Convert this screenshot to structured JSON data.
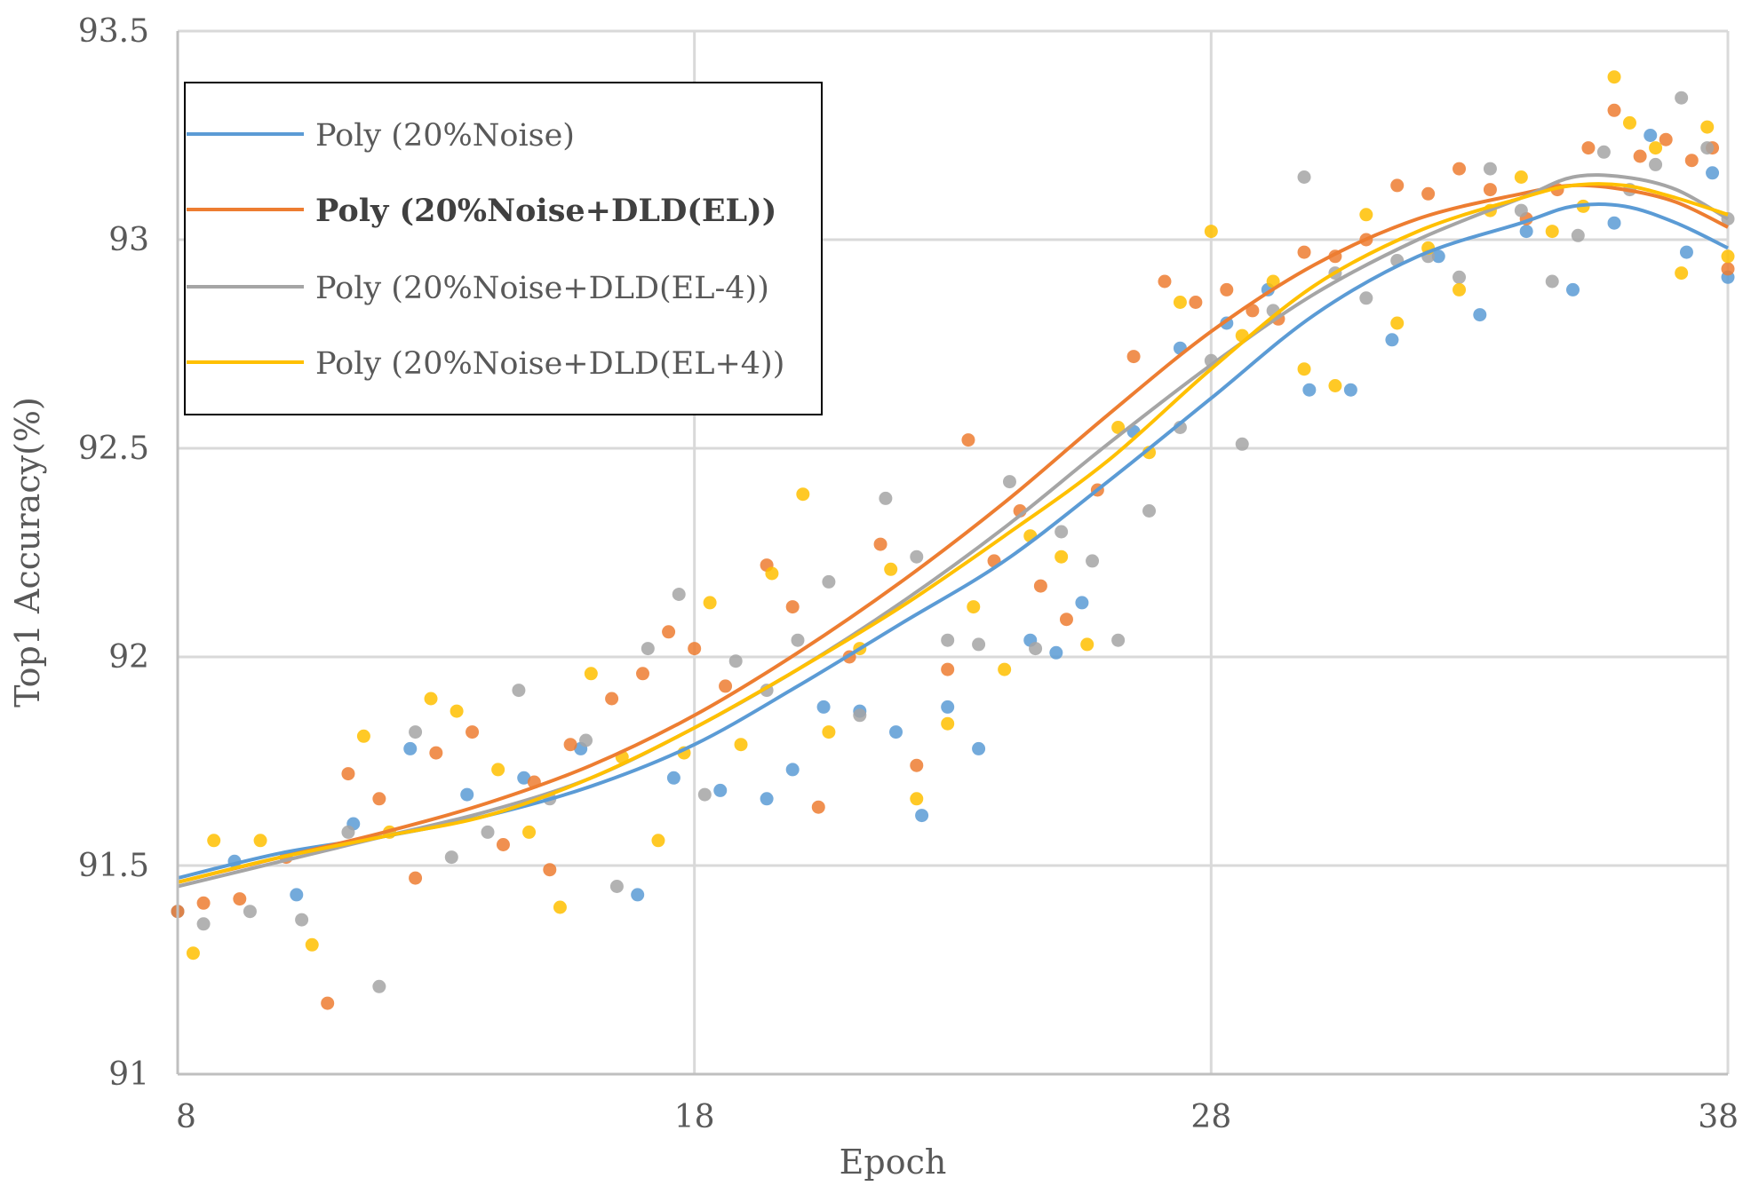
{
  "chart_data": {
    "type": "scatter",
    "title": "",
    "xlabel": "Epoch",
    "ylabel": "Top1 Accuracy(%)",
    "xlim": [
      8,
      38
    ],
    "ylim": [
      91,
      93.5
    ],
    "x_ticks": [
      "8",
      "18",
      "28",
      "38"
    ],
    "y_ticks": [
      "91",
      "91.5",
      "92",
      "92.5",
      "93",
      "93.5"
    ],
    "grid": true,
    "legend_position": "top-left",
    "series": [
      {
        "name": "Poly (20%Noise)",
        "color": "#5B9BD5",
        "emphasis": false,
        "trend": [
          [
            8,
            91.47
          ],
          [
            10,
            91.53
          ],
          [
            12,
            91.57
          ],
          [
            14,
            91.62
          ],
          [
            16,
            91.69
          ],
          [
            18,
            91.79
          ],
          [
            20,
            91.93
          ],
          [
            22,
            92.08
          ],
          [
            24,
            92.23
          ],
          [
            26,
            92.42
          ],
          [
            28,
            92.62
          ],
          [
            30,
            92.82
          ],
          [
            32,
            92.96
          ],
          [
            34,
            93.04
          ],
          [
            35,
            93.08
          ],
          [
            36,
            93.08
          ],
          [
            37,
            93.04
          ],
          [
            38,
            92.98
          ]
        ],
        "points": [
          [
            8,
            91.39
          ],
          [
            9.1,
            91.51
          ],
          [
            10.3,
            91.43
          ],
          [
            11.4,
            91.6
          ],
          [
            12.5,
            91.78
          ],
          [
            13.6,
            91.67
          ],
          [
            14.7,
            91.71
          ],
          [
            15.8,
            91.78
          ],
          [
            16.9,
            91.43
          ],
          [
            17.6,
            91.71
          ],
          [
            18.5,
            91.68
          ],
          [
            19.4,
            91.66
          ],
          [
            19.9,
            91.73
          ],
          [
            20.5,
            91.88
          ],
          [
            21.2,
            91.87
          ],
          [
            21.9,
            91.82
          ],
          [
            22.4,
            91.62
          ],
          [
            22.9,
            91.88
          ],
          [
            23.5,
            91.78
          ],
          [
            24.5,
            92.04
          ],
          [
            25.0,
            92.01
          ],
          [
            25.5,
            92.13
          ],
          [
            26.5,
            92.54
          ],
          [
            27.4,
            92.74
          ],
          [
            28.3,
            92.8
          ],
          [
            29.1,
            92.88
          ],
          [
            29.9,
            92.64
          ],
          [
            30.7,
            92.64
          ],
          [
            31.5,
            92.76
          ],
          [
            32.4,
            92.96
          ],
          [
            33.2,
            92.82
          ],
          [
            34.1,
            93.02
          ],
          [
            35.0,
            92.88
          ],
          [
            35.8,
            93.04
          ],
          [
            36.5,
            93.25
          ],
          [
            37.2,
            92.97
          ],
          [
            37.7,
            93.16
          ],
          [
            38,
            92.91
          ]
        ]
      },
      {
        "name": "Poly (20%Noise+DLD(EL))",
        "color": "#ED7D31",
        "emphasis": true,
        "trend": [
          [
            8,
            91.46
          ],
          [
            10,
            91.52
          ],
          [
            12,
            91.58
          ],
          [
            14,
            91.65
          ],
          [
            16,
            91.74
          ],
          [
            18,
            91.86
          ],
          [
            20,
            92.01
          ],
          [
            22,
            92.18
          ],
          [
            24,
            92.37
          ],
          [
            26,
            92.58
          ],
          [
            28,
            92.78
          ],
          [
            30,
            92.94
          ],
          [
            32,
            93.05
          ],
          [
            34,
            93.11
          ],
          [
            35,
            93.13
          ],
          [
            36,
            93.12
          ],
          [
            37,
            93.09
          ],
          [
            38,
            93.03
          ]
        ],
        "points": [
          [
            8,
            91.39
          ],
          [
            8.5,
            91.41
          ],
          [
            9.2,
            91.42
          ],
          [
            10.1,
            91.52
          ],
          [
            10.9,
            91.17
          ],
          [
            11.3,
            91.72
          ],
          [
            11.9,
            91.66
          ],
          [
            12.6,
            91.47
          ],
          [
            13.0,
            91.77
          ],
          [
            13.7,
            91.82
          ],
          [
            14.3,
            91.55
          ],
          [
            14.9,
            91.7
          ],
          [
            15.2,
            91.49
          ],
          [
            15.6,
            91.79
          ],
          [
            16.4,
            91.9
          ],
          [
            17.0,
            91.96
          ],
          [
            17.5,
            92.06
          ],
          [
            18.0,
            92.02
          ],
          [
            18.6,
            91.93
          ],
          [
            19.4,
            92.22
          ],
          [
            19.9,
            92.12
          ],
          [
            20.4,
            91.64
          ],
          [
            21.0,
            92.0
          ],
          [
            21.6,
            92.27
          ],
          [
            22.3,
            91.74
          ],
          [
            22.9,
            91.97
          ],
          [
            23.3,
            92.52
          ],
          [
            23.8,
            92.23
          ],
          [
            24.3,
            92.35
          ],
          [
            24.7,
            92.17
          ],
          [
            25.2,
            92.09
          ],
          [
            25.8,
            92.4
          ],
          [
            26.5,
            92.72
          ],
          [
            27.1,
            92.9
          ],
          [
            27.7,
            92.85
          ],
          [
            28.3,
            92.88
          ],
          [
            28.8,
            92.83
          ],
          [
            29.3,
            92.81
          ],
          [
            29.8,
            92.97
          ],
          [
            30.4,
            92.96
          ],
          [
            31.0,
            93.0
          ],
          [
            31.6,
            93.13
          ],
          [
            32.2,
            93.11
          ],
          [
            32.8,
            93.17
          ],
          [
            33.4,
            93.12
          ],
          [
            34.1,
            93.05
          ],
          [
            34.7,
            93.12
          ],
          [
            35.3,
            93.22
          ],
          [
            35.8,
            93.31
          ],
          [
            36.3,
            93.2
          ],
          [
            36.8,
            93.24
          ],
          [
            37.3,
            93.19
          ],
          [
            37.7,
            93.22
          ],
          [
            38,
            92.93
          ]
        ]
      },
      {
        "name": "Poly (20%Noise+DLD(EL-4))",
        "color": "#A5A5A5",
        "emphasis": false,
        "trend": [
          [
            8,
            91.45
          ],
          [
            10,
            91.51
          ],
          [
            12,
            91.57
          ],
          [
            14,
            91.63
          ],
          [
            16,
            91.71
          ],
          [
            18,
            91.83
          ],
          [
            20,
            91.97
          ],
          [
            22,
            92.13
          ],
          [
            24,
            92.31
          ],
          [
            26,
            92.51
          ],
          [
            28,
            92.7
          ],
          [
            30,
            92.87
          ],
          [
            32,
            93.0
          ],
          [
            34,
            93.1
          ],
          [
            35,
            93.15
          ],
          [
            36,
            93.15
          ],
          [
            37,
            93.12
          ],
          [
            38,
            93.05
          ]
        ],
        "points": [
          [
            8.5,
            91.36
          ],
          [
            9.4,
            91.39
          ],
          [
            10.4,
            91.37
          ],
          [
            11.3,
            91.58
          ],
          [
            11.9,
            91.21
          ],
          [
            12.6,
            91.82
          ],
          [
            13.3,
            91.52
          ],
          [
            14.0,
            91.58
          ],
          [
            14.6,
            91.92
          ],
          [
            15.2,
            91.66
          ],
          [
            15.9,
            91.8
          ],
          [
            16.5,
            91.45
          ],
          [
            17.1,
            92.02
          ],
          [
            17.7,
            92.15
          ],
          [
            18.2,
            91.67
          ],
          [
            18.8,
            91.99
          ],
          [
            19.4,
            91.92
          ],
          [
            20.0,
            92.04
          ],
          [
            20.6,
            92.18
          ],
          [
            21.2,
            91.86
          ],
          [
            21.7,
            92.38
          ],
          [
            22.3,
            92.24
          ],
          [
            22.9,
            92.04
          ],
          [
            23.5,
            92.03
          ],
          [
            24.1,
            92.42
          ],
          [
            24.6,
            92.02
          ],
          [
            25.1,
            92.3
          ],
          [
            25.7,
            92.23
          ],
          [
            26.2,
            92.04
          ],
          [
            26.8,
            92.35
          ],
          [
            27.4,
            92.55
          ],
          [
            28.0,
            92.71
          ],
          [
            28.6,
            92.51
          ],
          [
            29.2,
            92.83
          ],
          [
            29.8,
            93.15
          ],
          [
            30.4,
            92.92
          ],
          [
            31.0,
            92.86
          ],
          [
            31.6,
            92.95
          ],
          [
            32.2,
            92.96
          ],
          [
            32.8,
            92.91
          ],
          [
            33.4,
            93.17
          ],
          [
            34.0,
            93.07
          ],
          [
            34.6,
            92.9
          ],
          [
            35.1,
            93.01
          ],
          [
            35.6,
            93.21
          ],
          [
            36.1,
            93.12
          ],
          [
            36.6,
            93.18
          ],
          [
            37.1,
            93.34
          ],
          [
            37.6,
            93.22
          ],
          [
            38,
            93.05
          ]
        ]
      },
      {
        "name": "Poly (20%Noise+DLD(EL+4))",
        "color": "#FFC000",
        "emphasis": false,
        "trend": [
          [
            8,
            91.46
          ],
          [
            10,
            91.52
          ],
          [
            12,
            91.57
          ],
          [
            14,
            91.62
          ],
          [
            16,
            91.71
          ],
          [
            18,
            91.83
          ],
          [
            20,
            91.97
          ],
          [
            22,
            92.12
          ],
          [
            24,
            92.29
          ],
          [
            26,
            92.47
          ],
          [
            28,
            92.69
          ],
          [
            30,
            92.89
          ],
          [
            32,
            93.02
          ],
          [
            34,
            93.1
          ],
          [
            35,
            93.13
          ],
          [
            36,
            93.13
          ],
          [
            37,
            93.1
          ],
          [
            38,
            93.06
          ]
        ],
        "points": [
          [
            8.3,
            91.29
          ],
          [
            8.7,
            91.56
          ],
          [
            9.6,
            91.56
          ],
          [
            10.6,
            91.31
          ],
          [
            11.6,
            91.81
          ],
          [
            12.1,
            91.58
          ],
          [
            12.9,
            91.9
          ],
          [
            13.4,
            91.87
          ],
          [
            14.2,
            91.73
          ],
          [
            14.8,
            91.58
          ],
          [
            15.4,
            91.4
          ],
          [
            16.0,
            91.96
          ],
          [
            16.6,
            91.76
          ],
          [
            17.3,
            91.56
          ],
          [
            17.8,
            91.77
          ],
          [
            18.3,
            92.13
          ],
          [
            18.9,
            91.79
          ],
          [
            19.5,
            92.2
          ],
          [
            20.1,
            92.39
          ],
          [
            20.6,
            91.82
          ],
          [
            21.2,
            92.02
          ],
          [
            21.8,
            92.21
          ],
          [
            22.3,
            91.66
          ],
          [
            22.9,
            91.84
          ],
          [
            23.4,
            92.12
          ],
          [
            24.0,
            91.97
          ],
          [
            24.5,
            92.29
          ],
          [
            25.1,
            92.24
          ],
          [
            25.6,
            92.03
          ],
          [
            26.2,
            92.55
          ],
          [
            26.8,
            92.49
          ],
          [
            27.4,
            92.85
          ],
          [
            28.0,
            93.02
          ],
          [
            28.6,
            92.77
          ],
          [
            29.2,
            92.9
          ],
          [
            29.8,
            92.69
          ],
          [
            30.4,
            92.65
          ],
          [
            31.0,
            93.06
          ],
          [
            31.6,
            92.8
          ],
          [
            32.2,
            92.98
          ],
          [
            32.8,
            92.88
          ],
          [
            33.4,
            93.07
          ],
          [
            34.0,
            93.15
          ],
          [
            34.6,
            93.02
          ],
          [
            35.2,
            93.08
          ],
          [
            35.8,
            93.39
          ],
          [
            36.1,
            93.28
          ],
          [
            36.6,
            93.22
          ],
          [
            37.1,
            92.92
          ],
          [
            37.6,
            93.27
          ],
          [
            38,
            92.96
          ]
        ]
      }
    ]
  }
}
